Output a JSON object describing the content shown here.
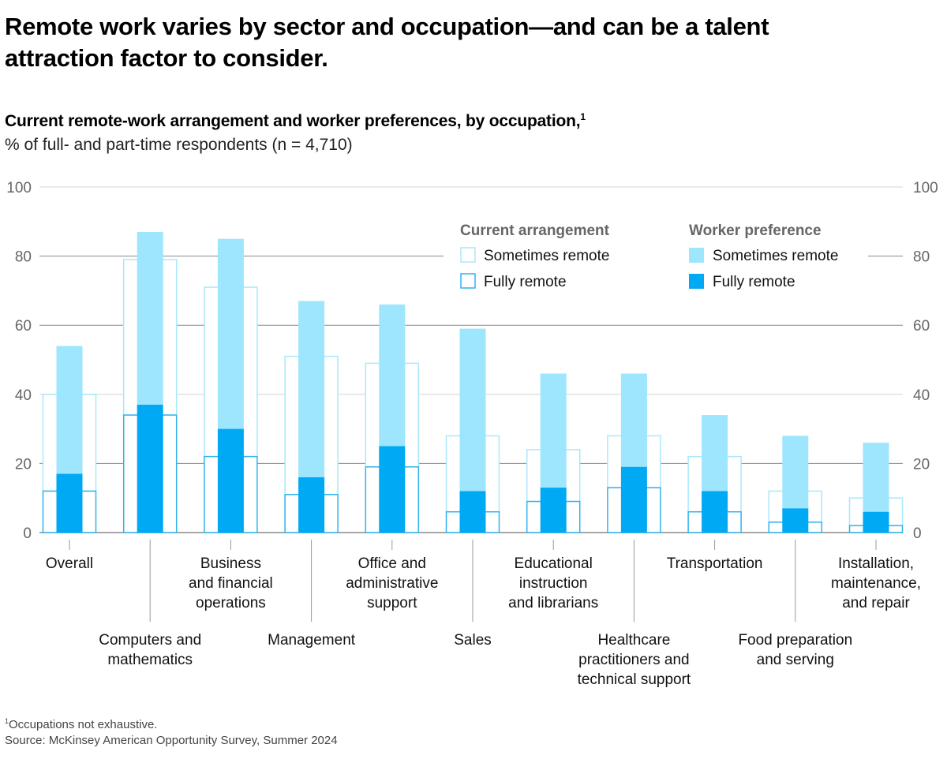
{
  "title": "Remote work varies by sector and occupation—and can be a talent attraction factor to consider.",
  "subtitle": "Current remote-work arrangement and worker preferences, by occupation,",
  "subtitle_footnote_marker": "1",
  "units": "% of full- and part-time respondents (n = 4,710)",
  "footnotes": {
    "marker": "1",
    "note": "Occupations not exhaustive.",
    "source": "Source: McKinsey American Opportunity Survey, Summer 2024"
  },
  "colors": {
    "pref_sometimes": "#9de6fd",
    "pref_fully": "#00a9f4",
    "current_sometimes_outline": "#a9e8fb",
    "current_fully_outline": "#2fb3ee",
    "grid_dark": "#888888",
    "grid_light": "#d4d4d4",
    "axis_text": "#666666"
  },
  "chart_data": {
    "type": "bar",
    "title": "Current remote-work arrangement and worker preferences, by occupation",
    "ylabel": "% of full- and part-time respondents (n = 4,710)",
    "ylim": [
      0,
      100
    ],
    "yticks": [
      0,
      20,
      40,
      60,
      80,
      100
    ],
    "grid": true,
    "legend": {
      "placement": "top-right",
      "groups": [
        {
          "title": "Current arrangement",
          "items": [
            "Sometimes remote",
            "Fully remote"
          ]
        },
        {
          "title": "Worker preference",
          "items": [
            "Sometimes remote",
            "Fully remote"
          ]
        }
      ]
    },
    "categories": [
      {
        "label": [
          "Overall"
        ],
        "row": "upper"
      },
      {
        "label": [
          "Computers and",
          "mathematics"
        ],
        "row": "lower"
      },
      {
        "label": [
          "Business",
          "and financial",
          "operations"
        ],
        "row": "upper"
      },
      {
        "label": [
          "Management"
        ],
        "row": "lower"
      },
      {
        "label": [
          "Office and",
          "administrative",
          "support"
        ],
        "row": "upper"
      },
      {
        "label": [
          "Sales"
        ],
        "row": "lower"
      },
      {
        "label": [
          "Educational",
          "instruction",
          "and librarians"
        ],
        "row": "upper"
      },
      {
        "label": [
          "Healthcare",
          "practitioners and",
          "technical support"
        ],
        "row": "lower"
      },
      {
        "label": [
          "Transportation"
        ],
        "row": "upper"
      },
      {
        "label": [
          "Food preparation",
          "and serving"
        ],
        "row": "lower"
      },
      {
        "label": [
          "Installation,",
          "maintenance,",
          "and repair"
        ],
        "row": "upper"
      }
    ],
    "series": [
      {
        "name": "Current arrangement – total (sometimes + fully remote)",
        "values": [
          40,
          79,
          71,
          51,
          49,
          28,
          24,
          28,
          22,
          12,
          10
        ]
      },
      {
        "name": "Current arrangement – fully remote",
        "values": [
          12,
          34,
          22,
          11,
          19,
          6,
          9,
          13,
          6,
          3,
          2
        ]
      },
      {
        "name": "Worker preference – total (sometimes + fully remote)",
        "values": [
          54,
          87,
          85,
          67,
          66,
          59,
          46,
          46,
          34,
          28,
          26
        ]
      },
      {
        "name": "Worker preference – fully remote",
        "values": [
          17,
          37,
          30,
          16,
          25,
          12,
          13,
          19,
          12,
          7,
          6
        ]
      }
    ]
  }
}
